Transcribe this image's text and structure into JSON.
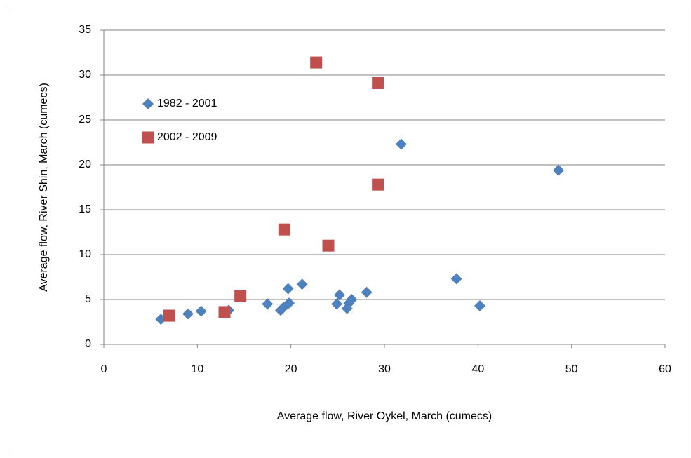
{
  "chart_data": {
    "type": "scatter",
    "xlabel": "Average flow, River Oykel, March (cumecs)",
    "ylabel": "Average flow, River Shin, March (cumecs)",
    "xlim": [
      0,
      60
    ],
    "xticks": [
      0,
      10,
      20,
      30,
      40,
      50,
      60
    ],
    "ylim": [
      0,
      35
    ],
    "yticks": [
      0,
      5,
      10,
      15,
      20,
      25,
      30,
      35
    ],
    "grid": true,
    "legend": "upper left",
    "series": [
      {
        "name": "1982 - 2001",
        "color": "#4f81bd",
        "marker": "diamond",
        "x": [
          6.1,
          9.0,
          10.4,
          13.35,
          17.5,
          18.9,
          19.2,
          19.8,
          19.7,
          21.2,
          24.9,
          25.2,
          26.0,
          26.2,
          26.5,
          28.1,
          31.8,
          37.7,
          40.2,
          48.6
        ],
        "values": [
          2.8,
          3.4,
          3.7,
          3.8,
          4.5,
          3.8,
          4.1,
          4.6,
          6.2,
          6.7,
          4.5,
          5.5,
          4.0,
          4.6,
          5.0,
          5.8,
          22.3,
          7.3,
          4.3,
          19.4
        ]
      },
      {
        "name": "2002 - 2009",
        "color": "#c0504d",
        "marker": "square",
        "x": [
          7.0,
          12.9,
          14.6,
          19.3,
          24.0,
          22.7,
          29.3,
          29.3
        ],
        "values": [
          3.2,
          3.6,
          5.4,
          12.8,
          11.0,
          31.4,
          29.1,
          17.8
        ]
      }
    ]
  }
}
